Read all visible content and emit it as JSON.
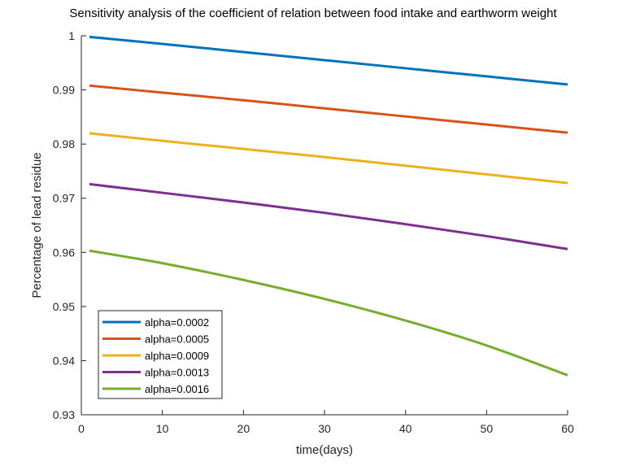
{
  "chart_data": {
    "type": "line",
    "title": "Sensitivity analysis of the coefficient of relation between food intake and earthworm weight",
    "xlabel": "time(days)",
    "ylabel": "Percentage of lead residue",
    "xlim": [
      0,
      60
    ],
    "ylim": [
      0.93,
      1
    ],
    "xticks": [
      "0",
      "10",
      "20",
      "30",
      "40",
      "50",
      "60"
    ],
    "yticks": [
      "0.93",
      "0.94",
      "0.95",
      "0.96",
      "0.97",
      "0.98",
      "0.99",
      "1"
    ],
    "grid": false,
    "legend_position": "bottom-left",
    "x": [
      1,
      10,
      20,
      30,
      40,
      50,
      60
    ],
    "series": [
      {
        "name": "alpha=0.0002",
        "color": "#0072BD",
        "values": [
          0.9998,
          0.9985,
          0.997,
          0.9955,
          0.994,
          0.9925,
          0.991
        ]
      },
      {
        "name": "alpha=0.0005",
        "color": "#D95319",
        "values": [
          0.9908,
          0.9895,
          0.9881,
          0.9866,
          0.9851,
          0.9836,
          0.9821
        ]
      },
      {
        "name": "alpha=0.0009",
        "color": "#EDB120",
        "values": [
          0.982,
          0.9806,
          0.9791,
          0.9776,
          0.976,
          0.9744,
          0.9728
        ]
      },
      {
        "name": "alpha=0.0013",
        "color": "#7E2F8E",
        "values": [
          0.9726,
          0.971,
          0.9692,
          0.9673,
          0.9652,
          0.963,
          0.9606
        ]
      },
      {
        "name": "alpha=0.0016",
        "color": "#77AC30",
        "values": [
          0.9603,
          0.958,
          0.9549,
          0.9514,
          0.9474,
          0.9428,
          0.9373
        ]
      }
    ]
  }
}
